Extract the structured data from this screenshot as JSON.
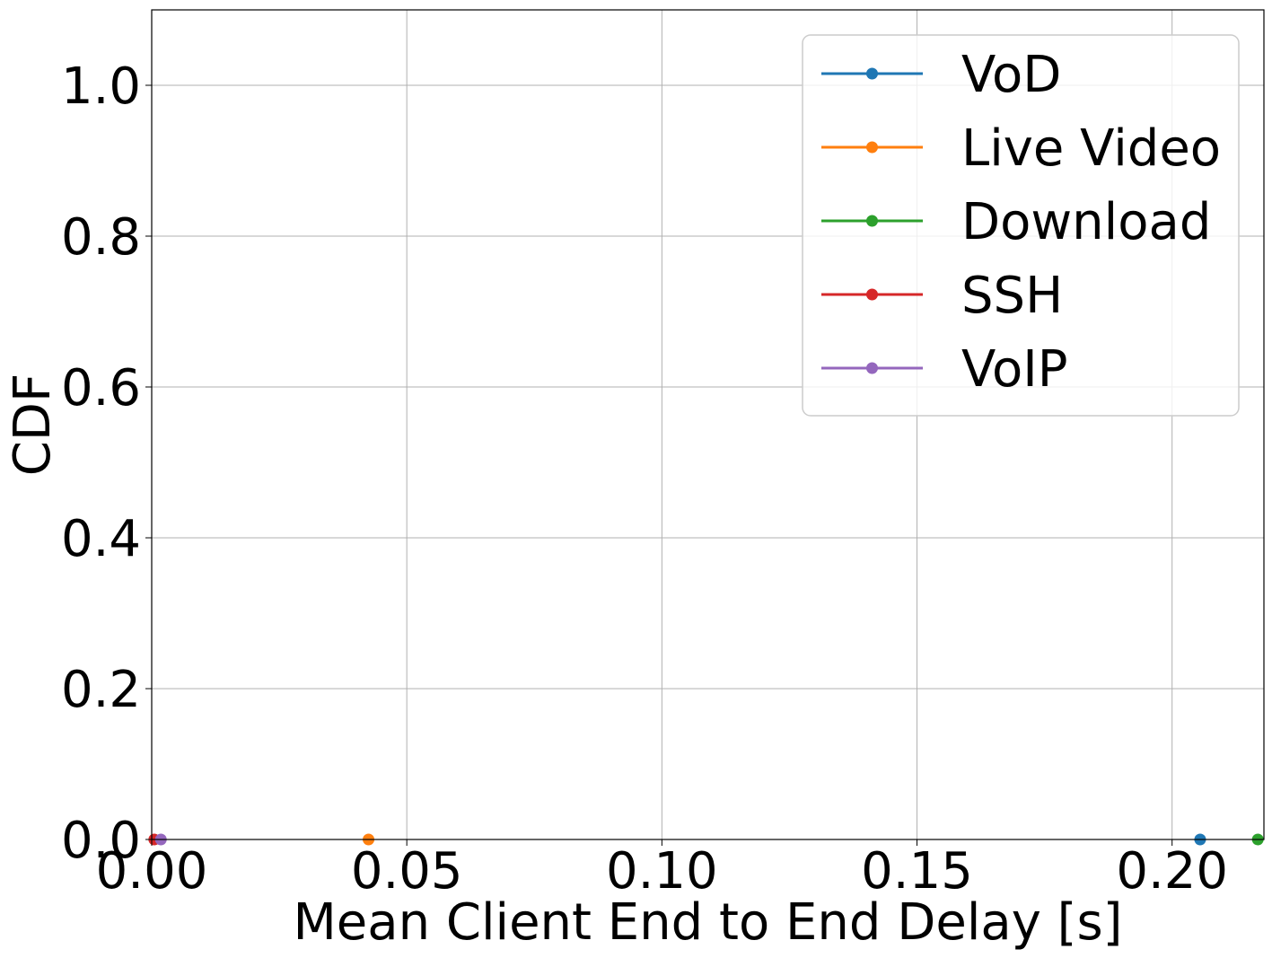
{
  "chart_data": {
    "type": "line",
    "title": "",
    "xlabel": "Mean Client End to End Delay [s]",
    "ylabel": "CDF",
    "xlim": [
      0.0,
      0.218
    ],
    "ylim": [
      0.0,
      1.1
    ],
    "xticks": [
      0.0,
      0.05,
      0.1,
      0.15,
      0.2
    ],
    "xtick_labels": [
      "0.00",
      "0.05",
      "0.10",
      "0.15",
      "0.20"
    ],
    "yticks": [
      0.0,
      0.2,
      0.4,
      0.6,
      0.8,
      1.0
    ],
    "ytick_labels": [
      "0.0",
      "0.2",
      "0.4",
      "0.6",
      "0.8",
      "1.0"
    ],
    "grid": true,
    "legend_position": "top-right",
    "series": [
      {
        "name": "VoD",
        "color": "#1f77b4",
        "points": [
          {
            "x": 0.2055,
            "y": 0.0
          }
        ]
      },
      {
        "name": "Live Video",
        "color": "#ff7f0e",
        "points": [
          {
            "x": 0.0425,
            "y": 0.0
          }
        ]
      },
      {
        "name": "Download",
        "color": "#2ca02c",
        "points": [
          {
            "x": 0.2168,
            "y": 0.0
          }
        ]
      },
      {
        "name": "SSH",
        "color": "#d62728",
        "points": [
          {
            "x": 0.0005,
            "y": 0.0
          }
        ]
      },
      {
        "name": "VoIP",
        "color": "#9467bd",
        "points": [
          {
            "x": 0.0018,
            "y": 0.0
          }
        ]
      }
    ]
  }
}
